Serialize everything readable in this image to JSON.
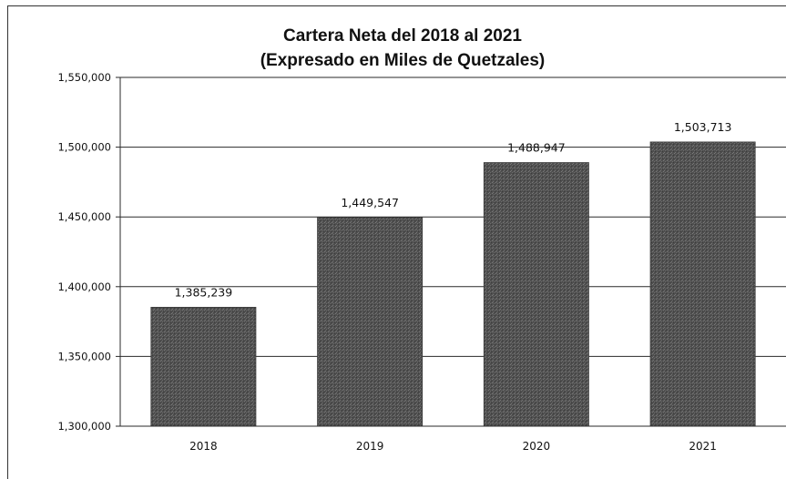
{
  "chart_data": {
    "type": "bar",
    "title_lines": [
      "Cartera Neta del 2018 al 2021",
      "(Expresado en Miles de Quetzales)"
    ],
    "categories": [
      "2018",
      "2019",
      "2020",
      "2021"
    ],
    "values": [
      1385239,
      1449547,
      1488947,
      1503713
    ],
    "value_labels": [
      "1,385,239",
      "1,449,547",
      "1,488,947",
      "1,503,713"
    ],
    "ylim": [
      1300000,
      1550000
    ],
    "yticks": [
      1300000,
      1350000,
      1400000,
      1450000,
      1500000,
      1550000
    ],
    "ytick_labels": [
      "1,300,000",
      "1,350,000",
      "1,400,000",
      "1,450,000",
      "1,500,000",
      "1,550,000"
    ],
    "grid": true,
    "legend": false,
    "bar_color": "#5a5a5a",
    "xlabel": "",
    "ylabel": ""
  }
}
